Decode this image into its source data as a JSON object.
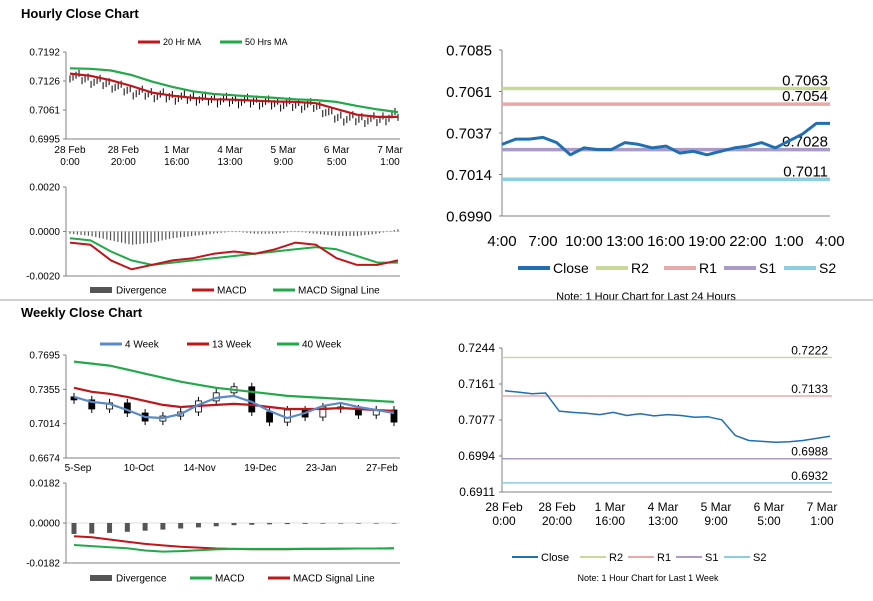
{
  "hourly": {
    "section_title": "Hourly Close Chart",
    "price_chart": {
      "type": "line",
      "legend": [
        "20 Hr MA",
        "50 Hrs MA"
      ],
      "y_ticks": [
        "0.7192",
        "0.7126",
        "0.7061",
        "0.6995"
      ],
      "ylim": [
        0.6995,
        0.7192
      ],
      "x_ticks": [
        [
          "28 Feb",
          "0:00"
        ],
        [
          "28 Feb",
          "20:00"
        ],
        [
          "1 Mar",
          "16:00"
        ],
        [
          "4 Mar",
          "13:00"
        ],
        [
          "5 Mar",
          "9:00"
        ],
        [
          "6 Mar",
          "5:00"
        ],
        [
          "7 Mar",
          "1:00"
        ]
      ],
      "ma20": [
        0.7143,
        0.7138,
        0.7128,
        0.7115,
        0.71,
        0.7093,
        0.7088,
        0.7085,
        0.7084,
        0.7082,
        0.708,
        0.7079,
        0.7076,
        0.7063,
        0.705,
        0.7045,
        0.7045
      ],
      "ma50": [
        0.7155,
        0.7154,
        0.715,
        0.714,
        0.7125,
        0.7113,
        0.7103,
        0.7097,
        0.7094,
        0.7091,
        0.7088,
        0.7085,
        0.7083,
        0.7079,
        0.707,
        0.7062,
        0.7056
      ],
      "close": [
        0.714,
        0.7128,
        0.7118,
        0.7102,
        0.7096,
        0.709,
        0.7088,
        0.7084,
        0.7082,
        0.708,
        0.7075,
        0.7072,
        0.707,
        0.7044,
        0.704,
        0.7038,
        0.705
      ]
    },
    "macd_chart": {
      "type": "line",
      "legend": [
        "Divergence",
        "MACD",
        "MACD Signal Line"
      ],
      "y_ticks": [
        "0.0020",
        "0.0000",
        "-0.0020"
      ],
      "ylim": [
        -0.002,
        0.002
      ],
      "macd": [
        -0.0005,
        -0.0006,
        -0.0013,
        -0.0017,
        -0.0015,
        -0.0013,
        -0.0012,
        -0.001,
        -0.0009,
        -0.001,
        -0.0008,
        -0.0005,
        -0.0006,
        -0.0012,
        -0.0015,
        -0.0015,
        -0.0013
      ],
      "signal": [
        -0.0003,
        -0.0004,
        -0.0009,
        -0.0013,
        -0.0015,
        -0.0014,
        -0.0013,
        -0.0012,
        -0.0011,
        -0.001,
        -0.0009,
        -0.0008,
        -0.0007,
        -0.0008,
        -0.0011,
        -0.0014,
        -0.0014
      ],
      "divergence": [
        -0.0001,
        -0.0002,
        -0.0004,
        -0.0006,
        -0.0005,
        -0.0003,
        -0.0002,
        -0.0001,
        0.0,
        -0.0001,
        -0.0001,
        0.0,
        -0.0001,
        -0.0002,
        -0.0002,
        -0.0001,
        0.0001
      ]
    },
    "pivot_chart": {
      "type": "line",
      "y_ticks": [
        "0.7085",
        "0.7061",
        "0.7037",
        "0.7014",
        "0.6990"
      ],
      "ylim": [
        0.699,
        0.7085
      ],
      "x_ticks": [
        "4:00",
        "7:00",
        "10:00",
        "13:00",
        "16:00",
        "19:00",
        "22:00",
        "1:00",
        "4:00"
      ],
      "close": [
        0.7031,
        0.7034,
        0.7034,
        0.7035,
        0.7032,
        0.7025,
        0.7029,
        0.7028,
        0.7028,
        0.7032,
        0.7031,
        0.7029,
        0.703,
        0.7026,
        0.7027,
        0.7025,
        0.7027,
        0.7029,
        0.703,
        0.7032,
        0.7029,
        0.7033,
        0.7037,
        0.7043,
        0.7043
      ],
      "levels": [
        {
          "name": "R2",
          "value": 0.7063,
          "label": "0.7063",
          "color": "#c8d99a"
        },
        {
          "name": "R1",
          "value": 0.7054,
          "label": "0.7054",
          "color": "#e8aaa8"
        },
        {
          "name": "S1",
          "value": 0.7028,
          "label": "0.7028",
          "color": "#a99ac8"
        },
        {
          "name": "S2",
          "value": 0.7011,
          "label": "0.7011",
          "color": "#8ccde0"
        }
      ],
      "legend": [
        "Close",
        "R2",
        "R1",
        "S1",
        "S2"
      ],
      "note": "Note: 1 Hour Chart for Last 24 Hours"
    }
  },
  "weekly": {
    "section_title": "Weekly Close Chart",
    "price_chart": {
      "type": "line",
      "legend": [
        "4 Week",
        "13 Week",
        "40 Week"
      ],
      "y_ticks": [
        "0.7695",
        "0.7355",
        "0.7014",
        "0.6674"
      ],
      "ylim": [
        0.6674,
        0.7695
      ],
      "x_ticks": [
        "5-Sep",
        "10-Oct",
        "14-Nov",
        "19-Dec",
        "23-Jan",
        "27-Feb"
      ],
      "week4": [
        0.728,
        0.723,
        0.721,
        0.715,
        0.708,
        0.707,
        0.711,
        0.72,
        0.727,
        0.729,
        0.723,
        0.714,
        0.707,
        0.712,
        0.719,
        0.722,
        0.718,
        0.715,
        0.712
      ],
      "week13": [
        0.737,
        0.733,
        0.731,
        0.728,
        0.724,
        0.72,
        0.718,
        0.719,
        0.72,
        0.721,
        0.72,
        0.718,
        0.716,
        0.716,
        0.716,
        0.717,
        0.716,
        0.715,
        0.714
      ],
      "week40": [
        0.763,
        0.761,
        0.759,
        0.755,
        0.751,
        0.747,
        0.743,
        0.74,
        0.737,
        0.735,
        0.733,
        0.731,
        0.729,
        0.728,
        0.727,
        0.726,
        0.725,
        0.724,
        0.723
      ],
      "close": [
        0.725,
        0.716,
        0.722,
        0.712,
        0.704,
        0.709,
        0.713,
        0.724,
        0.732,
        0.738,
        0.713,
        0.703,
        0.715,
        0.708,
        0.718,
        0.716,
        0.71,
        0.715,
        0.703
      ]
    },
    "macd_chart": {
      "type": "line",
      "legend": [
        "Divergence",
        "MACD",
        "MACD Signal Line"
      ],
      "y_ticks": [
        "0.0182",
        "0.0000",
        "-0.0182"
      ],
      "ylim": [
        -0.0182,
        0.0182
      ],
      "macd": [
        -0.01,
        -0.0105,
        -0.011,
        -0.0115,
        -0.0125,
        -0.013,
        -0.0128,
        -0.0124,
        -0.012,
        -0.0118,
        -0.0118,
        -0.0118,
        -0.0118,
        -0.0117,
        -0.0117,
        -0.0116,
        -0.0116,
        -0.0116,
        -0.0115
      ],
      "signal": [
        -0.006,
        -0.0065,
        -0.0075,
        -0.0085,
        -0.0095,
        -0.0102,
        -0.0108,
        -0.0112,
        -0.0116,
        -0.0118,
        -0.0119,
        -0.0119,
        -0.0119,
        -0.0118,
        -0.0118,
        -0.0117,
        -0.0116,
        -0.0116,
        -0.0115
      ],
      "divergence": [
        -0.005,
        -0.0048,
        -0.0045,
        -0.004,
        -0.0035,
        -0.003,
        -0.0025,
        -0.002,
        -0.0015,
        -0.001,
        -0.0008,
        -0.0006,
        -0.0005,
        -0.0004,
        -0.0003,
        -0.0002,
        -0.0002,
        -0.0001,
        -0.0001
      ]
    },
    "pivot_chart": {
      "type": "line",
      "y_ticks": [
        "0.7244",
        "0.7161",
        "0.7077",
        "0.6994",
        "0.6911"
      ],
      "ylim": [
        0.6911,
        0.7244
      ],
      "x_ticks": [
        [
          "28 Feb",
          "0:00"
        ],
        [
          "28 Feb",
          "20:00"
        ],
        [
          "1 Mar",
          "16:00"
        ],
        [
          "4 Mar",
          "13:00"
        ],
        [
          "5 Mar",
          "9:00"
        ],
        [
          "6 Mar",
          "5:00"
        ],
        [
          "7 Mar",
          "1:00"
        ]
      ],
      "close": [
        0.7145,
        0.7142,
        0.7138,
        0.714,
        0.7098,
        0.7095,
        0.7093,
        0.709,
        0.7095,
        0.7088,
        0.7092,
        0.7087,
        0.709,
        0.7088,
        0.7084,
        0.7085,
        0.7078,
        0.7042,
        0.703,
        0.7028,
        0.7026,
        0.7027,
        0.703,
        0.7035,
        0.704
      ],
      "levels": [
        {
          "name": "R2",
          "value": 0.7222,
          "label": "0.7222",
          "color": "#c8d99a"
        },
        {
          "name": "R1",
          "value": 0.7133,
          "label": "0.7133",
          "color": "#e8aaa8"
        },
        {
          "name": "S1",
          "value": 0.6988,
          "label": "0.6988",
          "color": "#a99ac8"
        },
        {
          "name": "S2",
          "value": 0.6932,
          "label": "0.6932",
          "color": "#8ccde0"
        }
      ],
      "legend": [
        "Close",
        "R2",
        "R1",
        "S1",
        "S2"
      ],
      "note": "Note: 1 Hour Chart for Last 1 Week"
    }
  },
  "colors": {
    "ma_red": "#c0161b",
    "ma_green": "#22a94a",
    "close_blue": "#1f6fb2",
    "week4_blue": "#5b8ac6",
    "price_black": "#000000",
    "divergence_gray": "#555555",
    "axis": "#808080",
    "divider": "#a0a0a0"
  }
}
